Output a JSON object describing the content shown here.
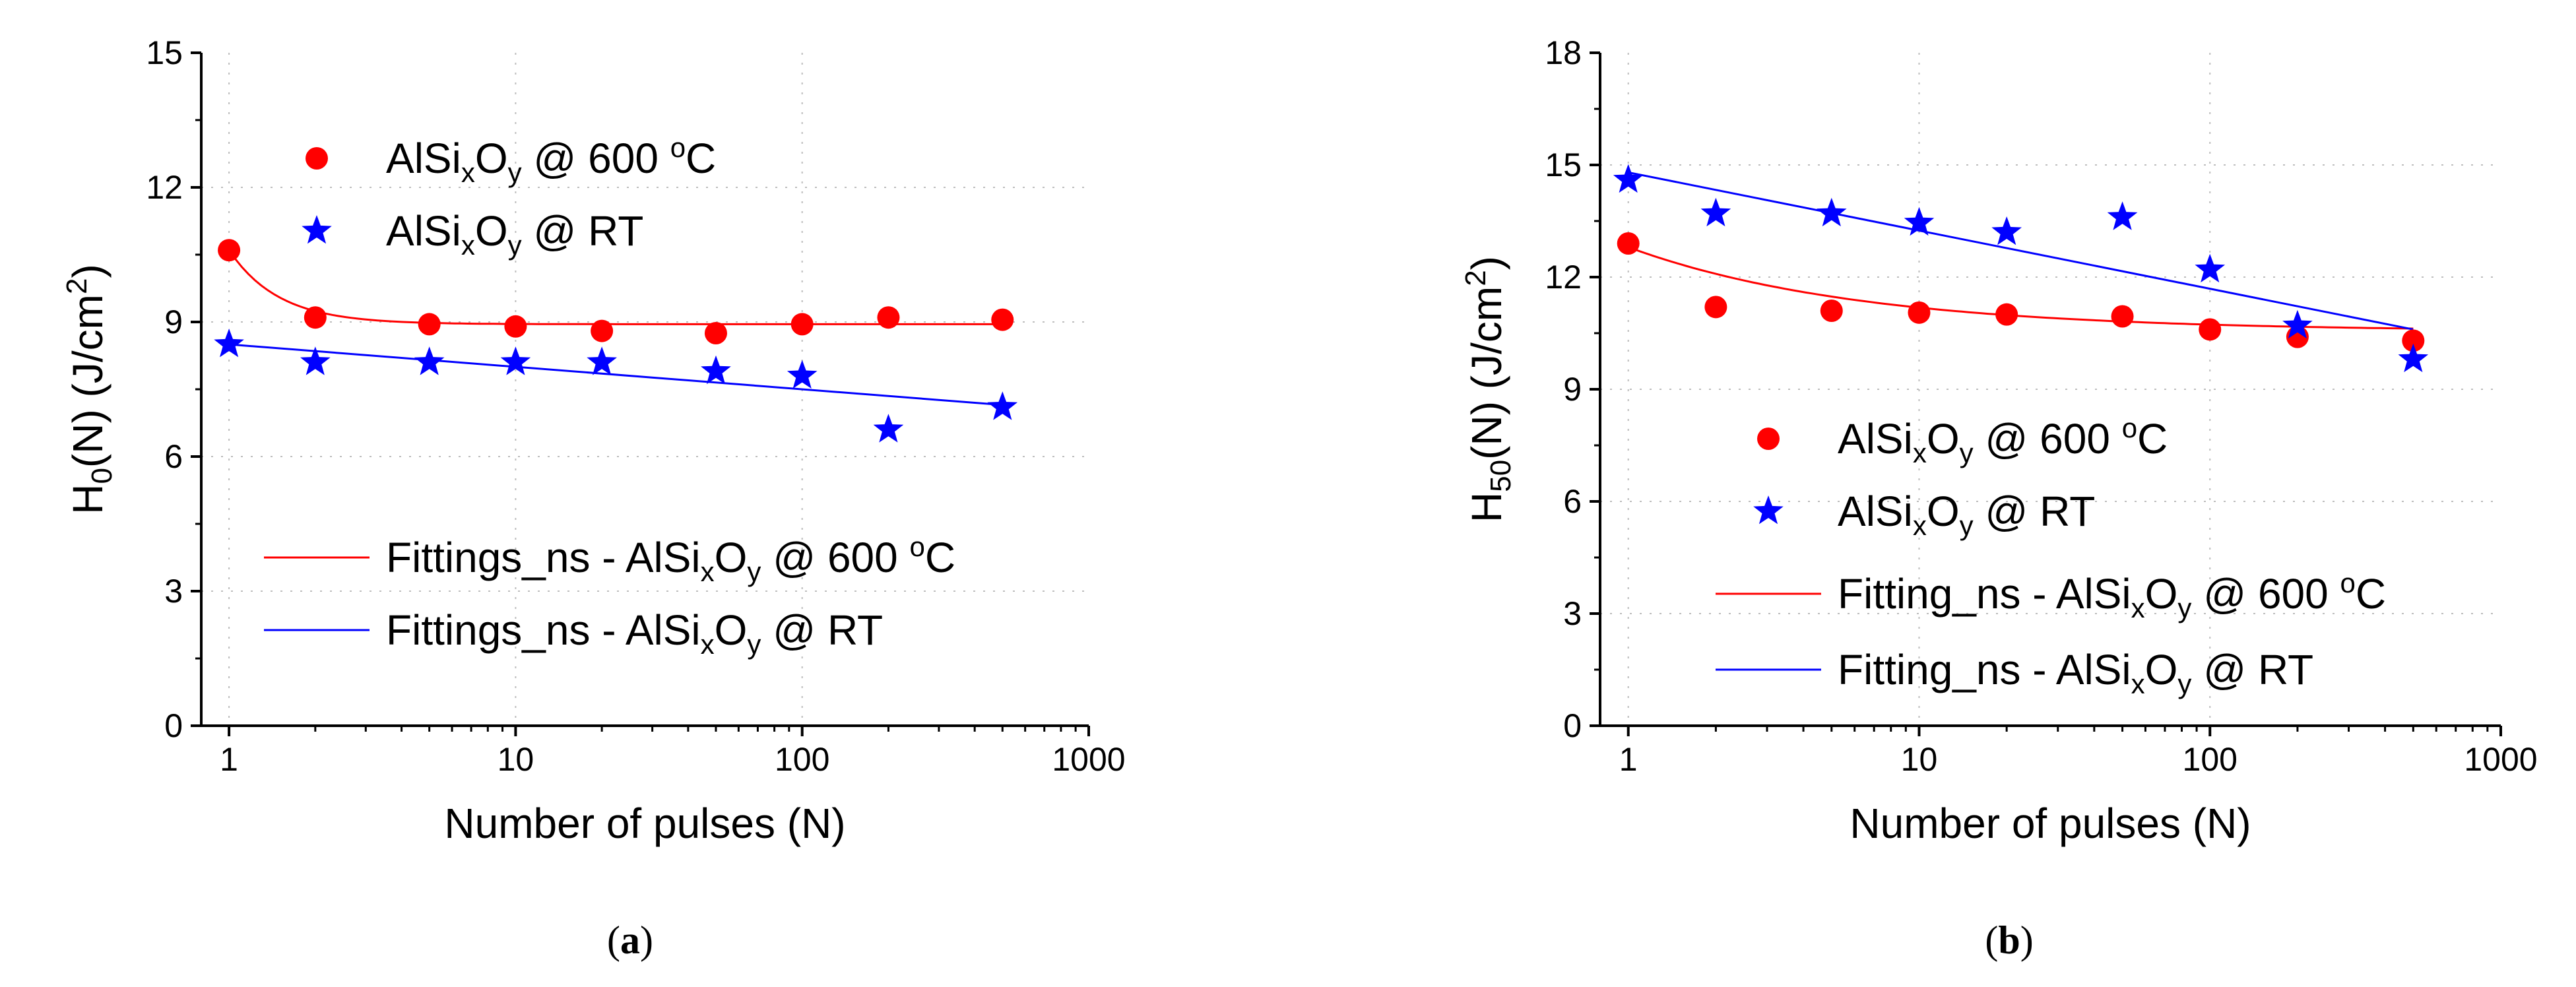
{
  "colors": {
    "red": "#ff0000",
    "blue": "#0000ff"
  },
  "chart_data": [
    {
      "type": "scatter",
      "panel": "(a)",
      "caption_letter": "a",
      "xlabel": "Number of pulses (N)",
      "ylabel": {
        "base": "H",
        "sub": "0",
        "rest": "(N) (J/cm",
        "sup": "2",
        "end": ")"
      },
      "xscale": "log",
      "xlim": [
        0.8,
        1000
      ],
      "ylim": [
        0,
        15
      ],
      "xticks": [
        1,
        10,
        100,
        1000
      ],
      "xtick_labels": [
        "1",
        "10",
        "100",
        "1000"
      ],
      "yticks": [
        0,
        3,
        6,
        9,
        12,
        15
      ],
      "ytick_labels": [
        "0",
        "3",
        "6",
        "9",
        "12",
        "15"
      ],
      "grid": true,
      "series": [
        {
          "name": "AlSixOy @ 600 °C",
          "kind": "points",
          "marker": "circle",
          "color": "#ff0000",
          "x": [
            1,
            2,
            5,
            10,
            20,
            50,
            100,
            200,
            500
          ],
          "y": [
            10.6,
            9.1,
            8.95,
            8.9,
            8.8,
            8.75,
            8.95,
            9.1,
            9.05
          ]
        },
        {
          "name": "AlSixOy @ RT",
          "kind": "points",
          "marker": "star",
          "color": "#0000ff",
          "x": [
            1,
            2,
            5,
            10,
            20,
            50,
            100,
            200,
            500
          ],
          "y": [
            8.5,
            8.1,
            8.1,
            8.1,
            8.1,
            7.9,
            7.8,
            6.6,
            7.1
          ]
        },
        {
          "name": "Fittings_ns - AlSixOy @ 600 °C",
          "kind": "line",
          "color": "#ff0000",
          "fit": {
            "form": "a+b/N^c",
            "a": 8.95,
            "b": 1.65,
            "c": 2.5,
            "xmin": 1,
            "xmax": 500
          }
        },
        {
          "name": "Fittings_ns - AlSixOy @ RT",
          "kind": "line",
          "color": "#0000ff",
          "x": [
            1,
            500
          ],
          "y": [
            8.5,
            7.15
          ]
        }
      ],
      "legend": [
        {
          "marker": "circle",
          "color": "#ff0000",
          "pre": "AlSi",
          "s1": "x",
          "mid": "O",
          "s2": "y",
          "post": " @ 600 ",
          "sup": "o",
          "end": "C"
        },
        {
          "marker": "star",
          "color": "#0000ff",
          "pre": "AlSi",
          "s1": "x",
          "mid": "O",
          "s2": "y",
          "post": " @ RT",
          "sup": "",
          "end": ""
        },
        {
          "marker": "line",
          "color": "#ff0000",
          "pre": "Fittings_ns - AlSi",
          "s1": "x",
          "mid": "O",
          "s2": "y",
          "post": " @ 600 ",
          "sup": "o",
          "end": "C"
        },
        {
          "marker": "line",
          "color": "#0000ff",
          "pre": "Fittings_ns - AlSi",
          "s1": "x",
          "mid": "O",
          "s2": "y",
          "post": " @ RT",
          "sup": "",
          "end": ""
        }
      ]
    },
    {
      "type": "scatter",
      "panel": "(b)",
      "caption_letter": "b",
      "xlabel": "Number of pulses (N)",
      "ylabel": {
        "base": "H",
        "sub": "50",
        "rest": "(N) (J/cm",
        "sup": "2",
        "end": ")"
      },
      "xscale": "log",
      "xlim": [
        0.8,
        1000
      ],
      "ylim": [
        0,
        18
      ],
      "xticks": [
        1,
        10,
        100,
        1000
      ],
      "xtick_labels": [
        "1",
        "10",
        "100",
        "1000"
      ],
      "yticks": [
        0,
        3,
        6,
        9,
        12,
        15,
        18
      ],
      "ytick_labels": [
        "0",
        "3",
        "6",
        "9",
        "12",
        "15",
        "18"
      ],
      "grid": true,
      "series": [
        {
          "name": "AlSixOy @ 600 °C",
          "kind": "points",
          "marker": "circle",
          "color": "#ff0000",
          "x": [
            1,
            2,
            5,
            10,
            20,
            50,
            100,
            200,
            500
          ],
          "y": [
            12.9,
            11.2,
            11.1,
            11.05,
            11.0,
            10.95,
            10.6,
            10.4,
            10.3
          ]
        },
        {
          "name": "AlSixOy @ RT",
          "kind": "points",
          "marker": "star",
          "color": "#0000ff",
          "x": [
            1,
            2,
            5,
            10,
            20,
            50,
            100,
            200,
            500
          ],
          "y": [
            14.6,
            13.7,
            13.7,
            13.45,
            13.2,
            13.6,
            12.2,
            10.7,
            9.8
          ]
        },
        {
          "name": "Fitting_ns - AlSixOy @ 600 °C",
          "kind": "line",
          "color": "#ff0000",
          "fit": {
            "form": "a+b/N^c",
            "a": 10.55,
            "b": 2.25,
            "c": 0.55,
            "xmin": 1,
            "xmax": 500
          }
        },
        {
          "name": "Fitting_ns - AlSixOy @ RT",
          "kind": "line",
          "color": "#0000ff",
          "x": [
            1,
            500
          ],
          "y": [
            14.8,
            10.6
          ]
        }
      ],
      "legend": [
        {
          "marker": "circle",
          "color": "#ff0000",
          "pre": "AlSi",
          "s1": "x",
          "mid": "O",
          "s2": "y",
          "post": " @ 600 ",
          "sup": "o",
          "end": "C"
        },
        {
          "marker": "star",
          "color": "#0000ff",
          "pre": "AlSi",
          "s1": "x",
          "mid": "O",
          "s2": "y",
          "post": " @ RT",
          "sup": "",
          "end": ""
        },
        {
          "marker": "line",
          "color": "#ff0000",
          "pre": "Fitting_ns - AlSi",
          "s1": "x",
          "mid": "O",
          "s2": "y",
          "post": " @ 600 ",
          "sup": "o",
          "end": "C"
        },
        {
          "marker": "line",
          "color": "#0000ff",
          "pre": "Fitting_ns - AlSi",
          "s1": "x",
          "mid": "O",
          "s2": "y",
          "post": " @ RT",
          "sup": "",
          "end": ""
        }
      ]
    }
  ]
}
